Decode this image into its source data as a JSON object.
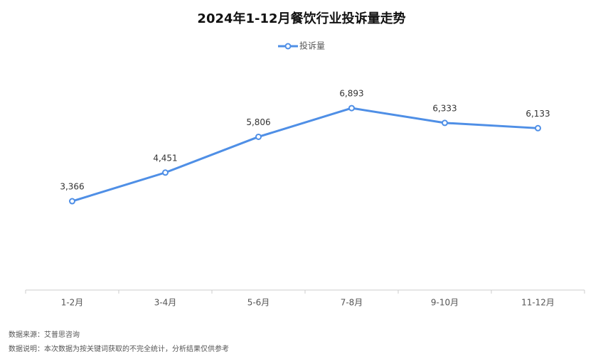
{
  "chart_data": {
    "type": "line",
    "title": "2024年1-12月餐饮行业投诉量走势",
    "categories": [
      "1-2月",
      "3-4月",
      "5-6月",
      "7-8月",
      "9-10月",
      "11-12月"
    ],
    "series": [
      {
        "name": "投诉量",
        "color": "#4f8fe6",
        "values": [
          3366,
          4451,
          5806,
          6893,
          6333,
          6133
        ],
        "value_labels": [
          "3,366",
          "4,451",
          "5,806",
          "6,893",
          "6,333",
          "6,133"
        ]
      }
    ],
    "ylim": [
      0,
      8000
    ],
    "notes": [
      "数据来源：艾普思咨询",
      "数据说明：本次数据为按关键词获取的不完全统计，分析结果仅供参考"
    ]
  }
}
